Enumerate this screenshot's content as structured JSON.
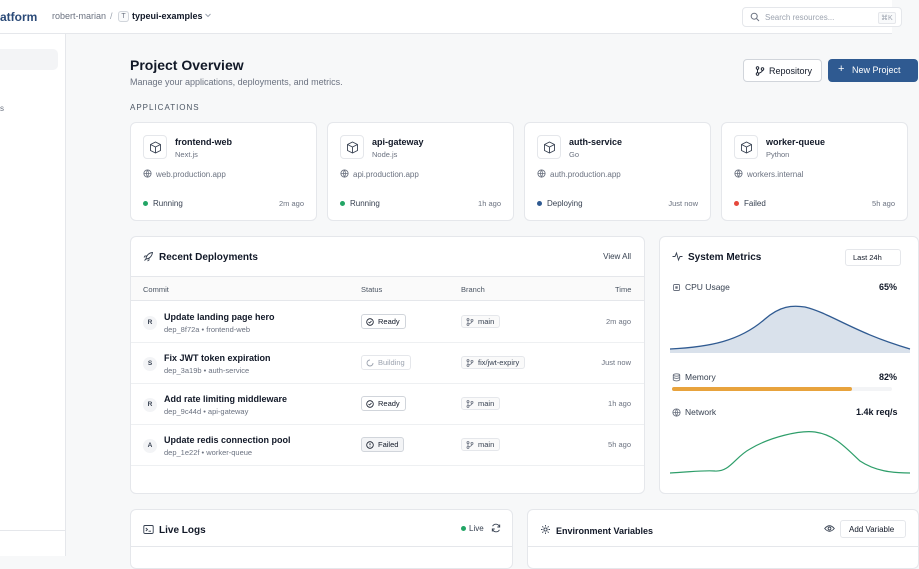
{
  "brand": "atform",
  "breadcrumb": {
    "user": "robert-marian",
    "separator": "/",
    "repo_badge": "T",
    "repo": "typeui-examples"
  },
  "search": {
    "placeholder": "Search resources...",
    "shortcut": "⌘K"
  },
  "sidebar": {
    "visible_label": "s"
  },
  "page": {
    "title": "Project Overview",
    "subtitle": "Manage your applications, deployments, and metrics."
  },
  "actions": {
    "repository": "Repository",
    "new_project": "New Project"
  },
  "applications": {
    "label": "APPLICATIONS",
    "items": [
      {
        "name": "frontend-web",
        "framework": "Next.js",
        "url": "web.production.app",
        "status": "Running",
        "status_color": "#22a565",
        "time": "2m ago"
      },
      {
        "name": "api-gateway",
        "framework": "Node.js",
        "url": "api.production.app",
        "status": "Running",
        "status_color": "#22a565",
        "time": "1h ago"
      },
      {
        "name": "auth-service",
        "framework": "Go",
        "url": "auth.production.app",
        "status": "Deploying",
        "status_color": "#2f5a91",
        "time": "Just now"
      },
      {
        "name": "worker-queue",
        "framework": "Python",
        "url": "workers.internal",
        "status": "Failed",
        "status_color": "#e5483b",
        "time": "5h ago"
      }
    ]
  },
  "deployments": {
    "title": "Recent Deployments",
    "view_all": "View All",
    "columns": {
      "commit": "Commit",
      "status": "Status",
      "branch": "Branch",
      "time": "Time"
    },
    "rows": [
      {
        "avatar": "R",
        "message": "Update landing page hero",
        "meta": "dep_8f72a • frontend-web",
        "status": "Ready",
        "branch": "main",
        "time": "2m ago"
      },
      {
        "avatar": "S",
        "message": "Fix JWT token expiration",
        "meta": "dep_3a19b • auth-service",
        "status": "Building",
        "branch": "fix/jwt-expiry",
        "time": "Just now"
      },
      {
        "avatar": "R",
        "message": "Add rate limiting middleware",
        "meta": "dep_9c44d • api-gateway",
        "status": "Ready",
        "branch": "main",
        "time": "1h ago"
      },
      {
        "avatar": "A",
        "message": "Update redis connection pool",
        "meta": "dep_1e22f • worker-queue",
        "status": "Failed",
        "branch": "main",
        "time": "5h ago"
      }
    ]
  },
  "metrics": {
    "title": "System Metrics",
    "range": "Last 24h",
    "cpu": {
      "label": "CPU Usage",
      "value": "65%"
    },
    "memory": {
      "label": "Memory",
      "value": "82%",
      "fraction": 0.82
    },
    "network": {
      "label": "Network",
      "value": "1.4k req/s"
    }
  },
  "logs": {
    "title": "Live Logs",
    "live": "Live"
  },
  "env": {
    "title": "Environment Variables",
    "add": "Add Variable"
  },
  "colors": {
    "accent": "#2f5a91",
    "running": "#22a565",
    "failed": "#e5483b",
    "memory": "#e8a33d",
    "network": "#2e9e6a"
  }
}
